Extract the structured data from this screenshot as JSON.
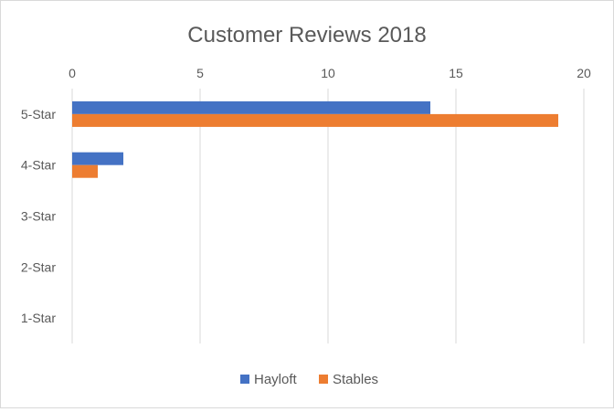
{
  "chart_data": {
    "type": "bar",
    "orientation": "horizontal",
    "title": "Customer Reviews 2018",
    "xlabel": "",
    "ylabel": "",
    "categories": [
      "5-Star",
      "4-Star",
      "3-Star",
      "2-Star",
      "1-Star"
    ],
    "series": [
      {
        "name": "Hayloft",
        "color": "#4472c4",
        "values": [
          14,
          2,
          0,
          0,
          0
        ]
      },
      {
        "name": "Stables",
        "color": "#ed7d31",
        "values": [
          19,
          1,
          0,
          0,
          0
        ]
      }
    ],
    "xlim": [
      0,
      20
    ],
    "xticks": [
      "0",
      "5",
      "10",
      "15",
      "20"
    ],
    "x_axis_position": "top",
    "grid": true,
    "legend": "bottom"
  }
}
